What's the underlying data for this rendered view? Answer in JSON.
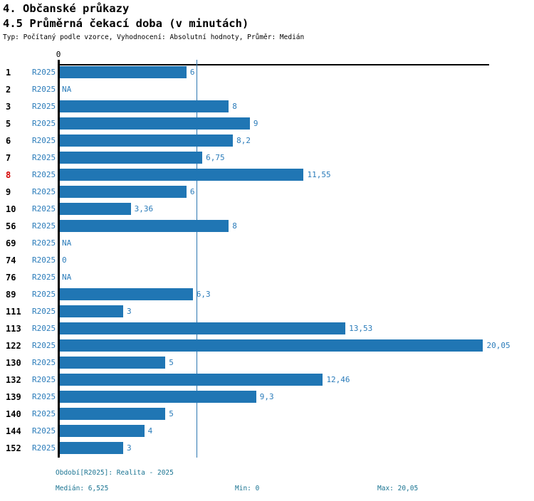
{
  "header": {
    "title": "4. Občanské průkazy",
    "subtitle": "4.5 Průměrná čekací doba (v minutách)",
    "meta": "Typ: Počítaný podle vzorce, Vyhodnocení: Absolutní hodnoty, Průměr: Medián"
  },
  "chart_data": {
    "type": "bar",
    "orientation": "horizontal",
    "title": "4.5 Průměrná čekací doba (v minutách)",
    "axis_zero_label": "0",
    "series_label": "R2025",
    "xlim": [
      0,
      20.4
    ],
    "median": 6.525,
    "min": 0,
    "max": 20.05,
    "colors": {
      "bar": "#2076b4",
      "value_label": "#2b7cba",
      "highlight_category": "#d40000",
      "median_line": "#2d77b0",
      "footer_text": "#1b7492"
    },
    "rows": [
      {
        "category": "1",
        "period": "R2025",
        "value": 6,
        "label": "6",
        "highlight": false
      },
      {
        "category": "2",
        "period": "R2025",
        "value": null,
        "label": "NA",
        "highlight": false
      },
      {
        "category": "3",
        "period": "R2025",
        "value": 8,
        "label": "8",
        "highlight": false
      },
      {
        "category": "5",
        "period": "R2025",
        "value": 9,
        "label": "9",
        "highlight": false
      },
      {
        "category": "6",
        "period": "R2025",
        "value": 8.2,
        "label": "8,2",
        "highlight": false
      },
      {
        "category": "7",
        "period": "R2025",
        "value": 6.75,
        "label": "6,75",
        "highlight": false
      },
      {
        "category": "8",
        "period": "R2025",
        "value": 11.55,
        "label": "11,55",
        "highlight": true
      },
      {
        "category": "9",
        "period": "R2025",
        "value": 6,
        "label": "6",
        "highlight": false
      },
      {
        "category": "10",
        "period": "R2025",
        "value": 3.36,
        "label": "3,36",
        "highlight": false
      },
      {
        "category": "56",
        "period": "R2025",
        "value": 8,
        "label": "8",
        "highlight": false
      },
      {
        "category": "69",
        "period": "R2025",
        "value": null,
        "label": "NA",
        "highlight": false
      },
      {
        "category": "74",
        "period": "R2025",
        "value": 0,
        "label": "0",
        "highlight": false
      },
      {
        "category": "76",
        "period": "R2025",
        "value": null,
        "label": "NA",
        "highlight": false
      },
      {
        "category": "89",
        "period": "R2025",
        "value": 6.3,
        "label": "6,3",
        "highlight": false
      },
      {
        "category": "111",
        "period": "R2025",
        "value": 3,
        "label": "3",
        "highlight": false
      },
      {
        "category": "113",
        "period": "R2025",
        "value": 13.53,
        "label": "13,53",
        "highlight": false
      },
      {
        "category": "122",
        "period": "R2025",
        "value": 20.05,
        "label": "20,05",
        "highlight": false
      },
      {
        "category": "130",
        "period": "R2025",
        "value": 5,
        "label": "5",
        "highlight": false
      },
      {
        "category": "132",
        "period": "R2025",
        "value": 12.46,
        "label": "12,46",
        "highlight": false
      },
      {
        "category": "139",
        "period": "R2025",
        "value": 9.3,
        "label": "9,3",
        "highlight": false
      },
      {
        "category": "140",
        "period": "R2025",
        "value": 5,
        "label": "5",
        "highlight": false
      },
      {
        "category": "144",
        "period": "R2025",
        "value": 4,
        "label": "4",
        "highlight": false
      },
      {
        "category": "152",
        "period": "R2025",
        "value": 3,
        "label": "3",
        "highlight": false
      }
    ]
  },
  "footer": {
    "period": "Období[R2025]: Realita - 2025",
    "median": "Medián: 6,525",
    "min": "Min: 0",
    "max": "Max: 20,05"
  }
}
